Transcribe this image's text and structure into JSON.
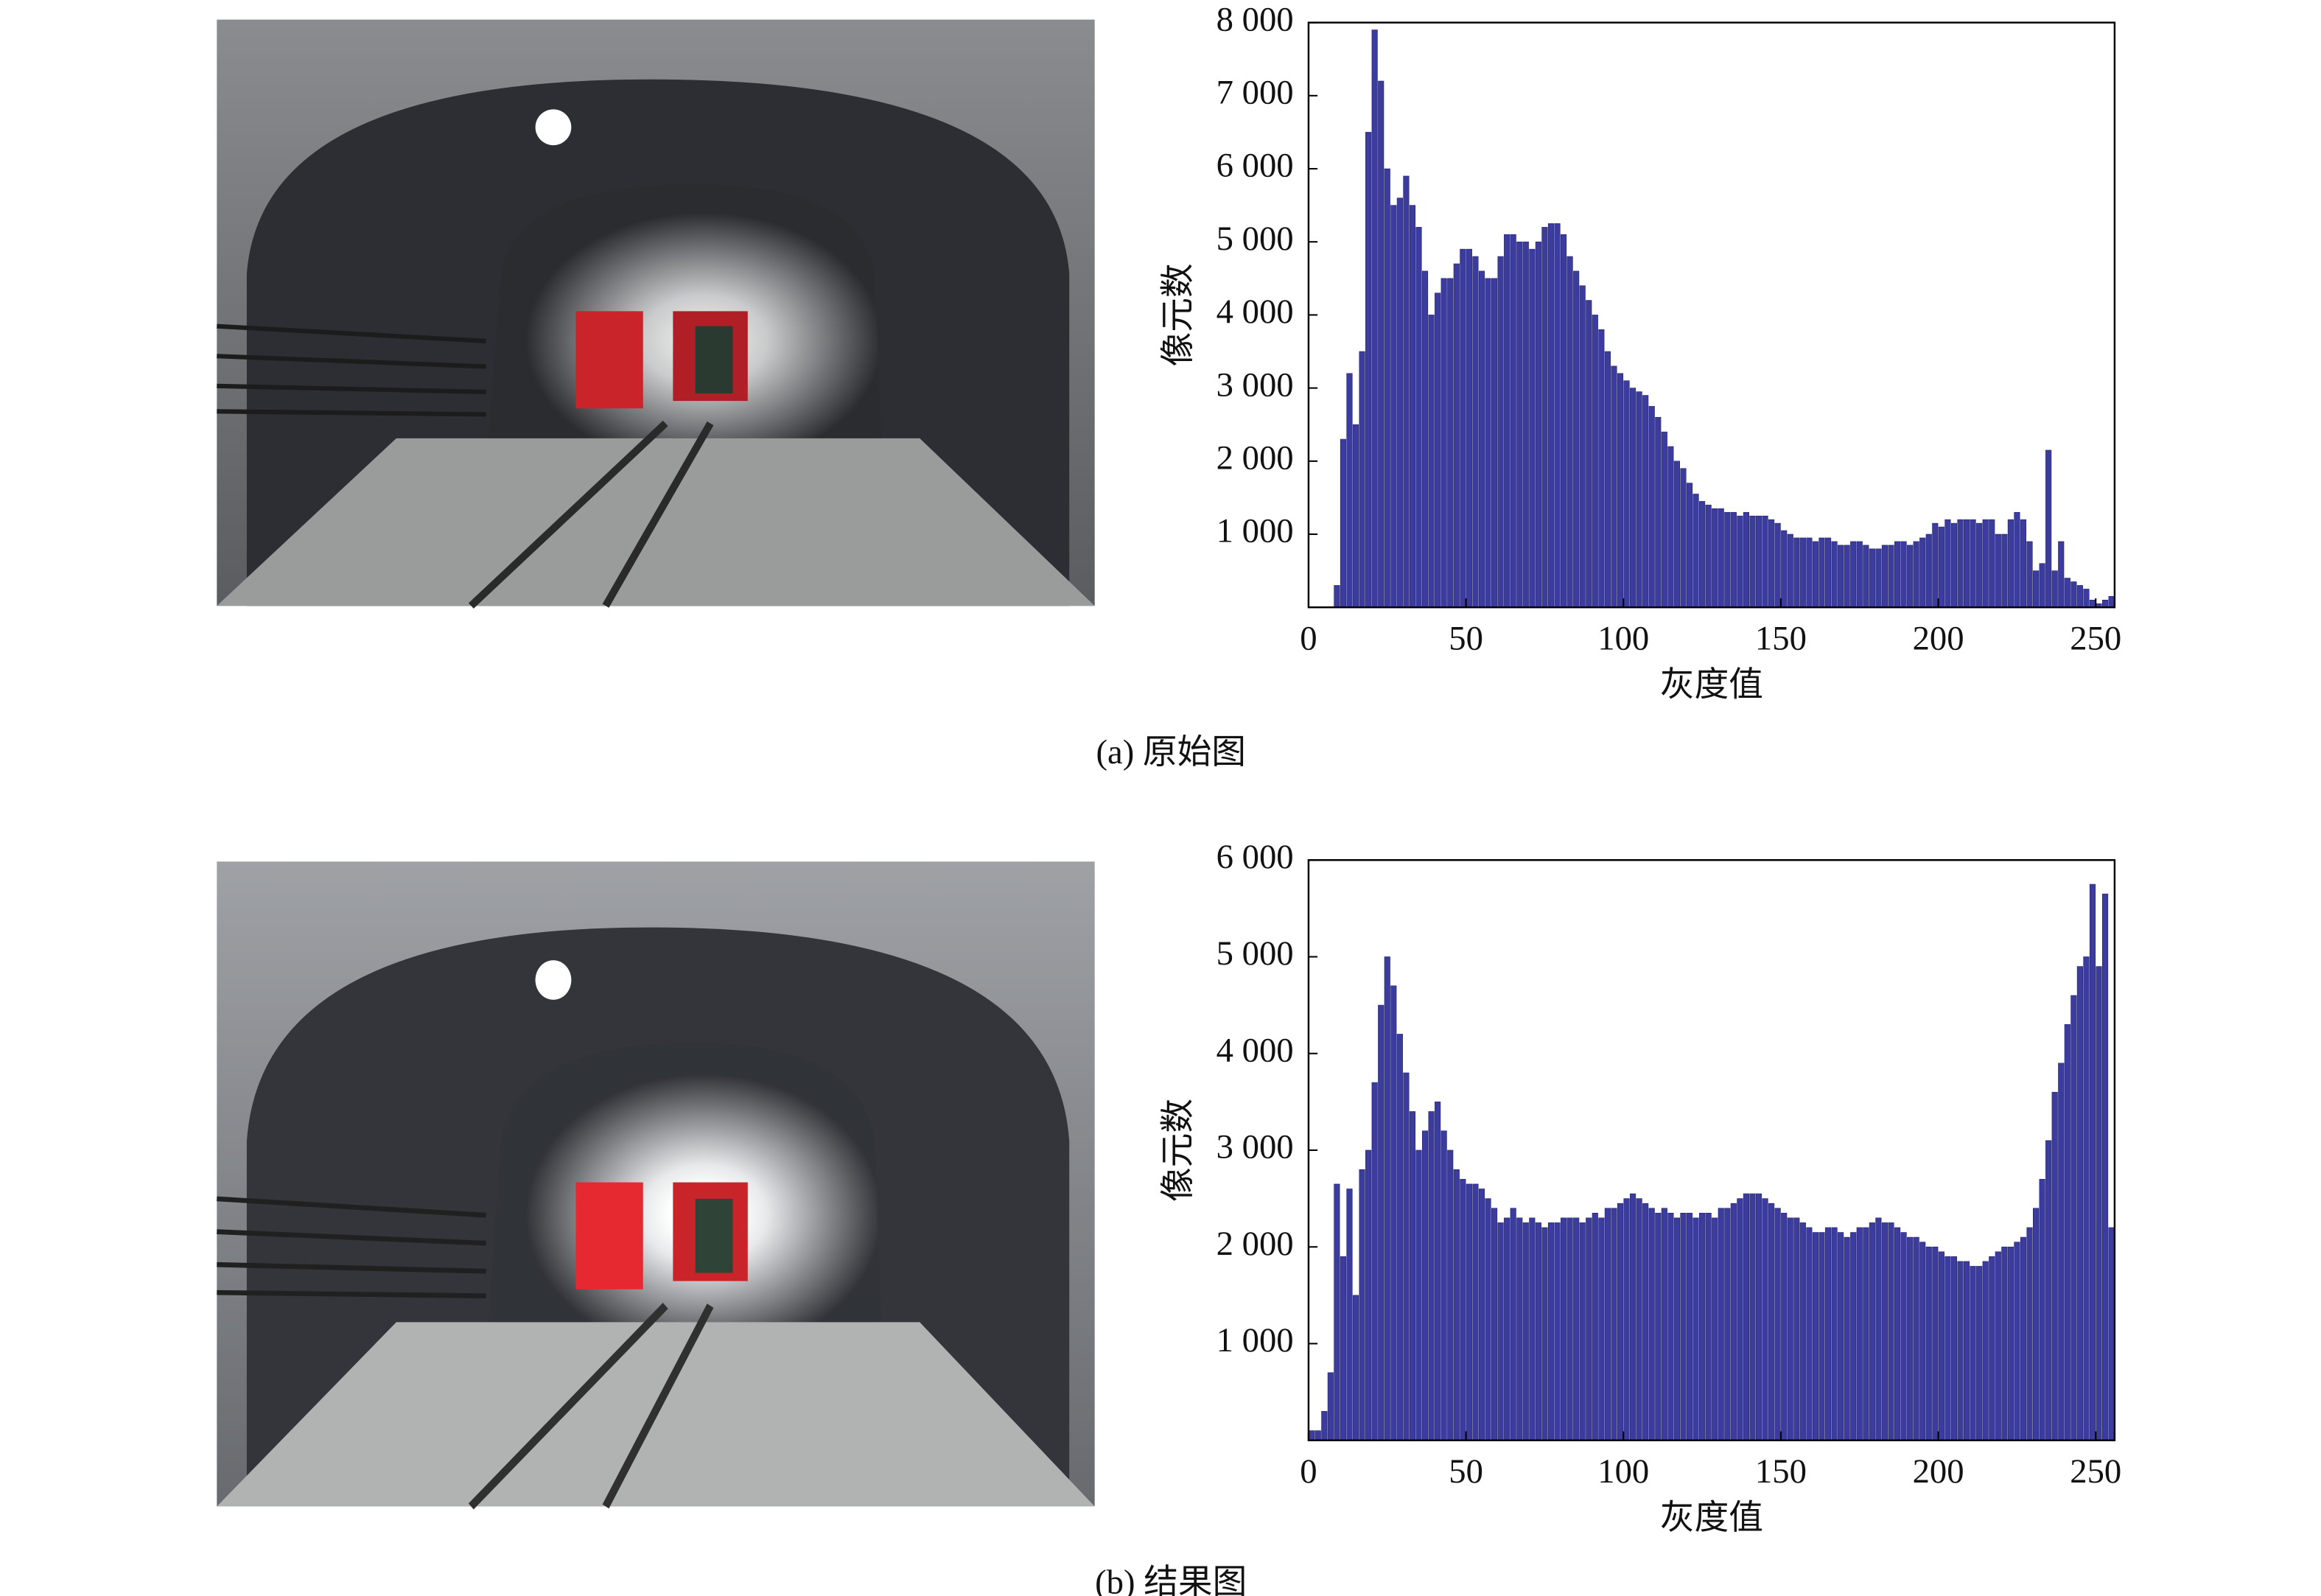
{
  "chart_data": [
    {
      "type": "histogram",
      "caption": "(a) 原始图",
      "xlabel": "灰度值",
      "ylabel": "像元数",
      "color": "#3c3c9e",
      "bins": [
        0,
        2,
        4,
        6,
        8,
        10,
        12,
        14,
        16,
        18,
        20,
        22,
        24,
        26,
        28,
        30,
        32,
        34,
        36,
        38,
        40,
        42,
        44,
        46,
        48,
        50,
        52,
        54,
        56,
        58,
        60,
        62,
        64,
        66,
        68,
        70,
        72,
        74,
        76,
        78,
        80,
        82,
        84,
        86,
        88,
        90,
        92,
        94,
        96,
        98,
        100,
        102,
        104,
        106,
        108,
        110,
        112,
        114,
        116,
        118,
        120,
        122,
        124,
        126,
        128,
        130,
        132,
        134,
        136,
        138,
        140,
        142,
        144,
        146,
        148,
        150,
        152,
        154,
        156,
        158,
        160,
        162,
        164,
        166,
        168,
        170,
        172,
        174,
        176,
        178,
        180,
        182,
        184,
        186,
        188,
        190,
        192,
        194,
        196,
        198,
        200,
        202,
        204,
        206,
        208,
        210,
        212,
        214,
        216,
        218,
        220,
        222,
        224,
        226,
        228,
        230,
        232,
        234,
        236,
        238,
        240,
        242,
        244,
        246,
        248,
        250,
        252,
        254,
        256
      ],
      "values": [
        0,
        0,
        0,
        0,
        300,
        2300,
        3200,
        2500,
        3500,
        6500,
        7900,
        7200,
        6000,
        5500,
        5600,
        5900,
        5500,
        5200,
        4600,
        4000,
        4300,
        4500,
        4500,
        4700,
        4900,
        4900,
        4800,
        4600,
        4500,
        4500,
        4800,
        5100,
        5100,
        5000,
        5000,
        4900,
        5000,
        5200,
        5250,
        5250,
        5100,
        4800,
        4600,
        4400,
        4200,
        4000,
        3800,
        3500,
        3300,
        3200,
        3100,
        3000,
        2950,
        2900,
        2750,
        2600,
        2400,
        2200,
        2000,
        1900,
        1700,
        1550,
        1450,
        1400,
        1350,
        1350,
        1300,
        1300,
        1250,
        1300,
        1250,
        1250,
        1250,
        1200,
        1150,
        1050,
        1000,
        950,
        950,
        950,
        900,
        950,
        950,
        900,
        850,
        850,
        900,
        900,
        850,
        800,
        800,
        850,
        850,
        900,
        900,
        850,
        900,
        950,
        1000,
        1150,
        1100,
        1200,
        1150,
        1200,
        1200,
        1200,
        1150,
        1200,
        1200,
        1000,
        1000,
        1200,
        1300,
        1200,
        900,
        500,
        600,
        2150,
        500,
        900,
        400,
        350,
        300,
        250,
        100,
        50,
        100,
        150
      ],
      "xlim": [
        0,
        256
      ],
      "ylim": [
        0,
        8000
      ],
      "xticks": [
        0,
        50,
        100,
        150,
        200,
        250
      ],
      "yticks": [
        {
          "value": 1000,
          "label": "1 000"
        },
        {
          "value": 2000,
          "label": "2 000"
        },
        {
          "value": 3000,
          "label": "3 000"
        },
        {
          "value": 4000,
          "label": "4 000"
        },
        {
          "value": 5000,
          "label": "5 000"
        },
        {
          "value": 6000,
          "label": "6 000"
        },
        {
          "value": 7000,
          "label": "7 000"
        },
        {
          "value": 8000,
          "label": "8 000"
        }
      ]
    },
    {
      "type": "histogram",
      "caption": "(b) 结果图",
      "xlabel": "灰度值",
      "ylabel": "像元数",
      "color": "#3c3c9e",
      "bins": [
        0,
        2,
        4,
        6,
        8,
        10,
        12,
        14,
        16,
        18,
        20,
        22,
        24,
        26,
        28,
        30,
        32,
        34,
        36,
        38,
        40,
        42,
        44,
        46,
        48,
        50,
        52,
        54,
        56,
        58,
        60,
        62,
        64,
        66,
        68,
        70,
        72,
        74,
        76,
        78,
        80,
        82,
        84,
        86,
        88,
        90,
        92,
        94,
        96,
        98,
        100,
        102,
        104,
        106,
        108,
        110,
        112,
        114,
        116,
        118,
        120,
        122,
        124,
        126,
        128,
        130,
        132,
        134,
        136,
        138,
        140,
        142,
        144,
        146,
        148,
        150,
        152,
        154,
        156,
        158,
        160,
        162,
        164,
        166,
        168,
        170,
        172,
        174,
        176,
        178,
        180,
        182,
        184,
        186,
        188,
        190,
        192,
        194,
        196,
        198,
        200,
        202,
        204,
        206,
        208,
        210,
        212,
        214,
        216,
        218,
        220,
        222,
        224,
        226,
        228,
        230,
        232,
        234,
        236,
        238,
        240,
        242,
        244,
        246,
        248,
        250,
        252,
        254,
        256
      ],
      "values": [
        100,
        100,
        300,
        700,
        2650,
        1900,
        2600,
        1500,
        2800,
        3000,
        3700,
        4500,
        5000,
        4700,
        4200,
        3800,
        3400,
        3000,
        3200,
        3400,
        3500,
        3200,
        3000,
        2800,
        2700,
        2650,
        2650,
        2600,
        2500,
        2400,
        2250,
        2300,
        2400,
        2300,
        2250,
        2300,
        2250,
        2200,
        2250,
        2250,
        2300,
        2300,
        2300,
        2250,
        2300,
        2350,
        2300,
        2400,
        2400,
        2450,
        2500,
        2550,
        2500,
        2450,
        2400,
        2350,
        2400,
        2350,
        2300,
        2350,
        2350,
        2300,
        2350,
        2350,
        2300,
        2400,
        2400,
        2450,
        2500,
        2550,
        2550,
        2550,
        2500,
        2450,
        2400,
        2350,
        2300,
        2300,
        2250,
        2200,
        2150,
        2150,
        2200,
        2200,
        2150,
        2100,
        2150,
        2200,
        2200,
        2250,
        2300,
        2250,
        2250,
        2200,
        2150,
        2100,
        2100,
        2050,
        2000,
        2000,
        1950,
        1900,
        1900,
        1850,
        1850,
        1800,
        1800,
        1850,
        1900,
        1950,
        2000,
        2000,
        2050,
        2100,
        2200,
        2400,
        2700,
        3100,
        3600,
        3900,
        4300,
        4600,
        4900,
        5000,
        5750,
        4900,
        5650,
        2200
      ],
      "xlim": [
        0,
        256
      ],
      "ylim": [
        0,
        6000
      ],
      "xticks": [
        0,
        50,
        100,
        150,
        200,
        250
      ],
      "yticks": [
        {
          "value": 1000,
          "label": "1 000"
        },
        {
          "value": 2000,
          "label": "2 000"
        },
        {
          "value": 3000,
          "label": "3 000"
        },
        {
          "value": 4000,
          "label": "4 000"
        },
        {
          "value": 5000,
          "label": "5 000"
        },
        {
          "value": 6000,
          "label": "6 000"
        }
      ]
    }
  ]
}
